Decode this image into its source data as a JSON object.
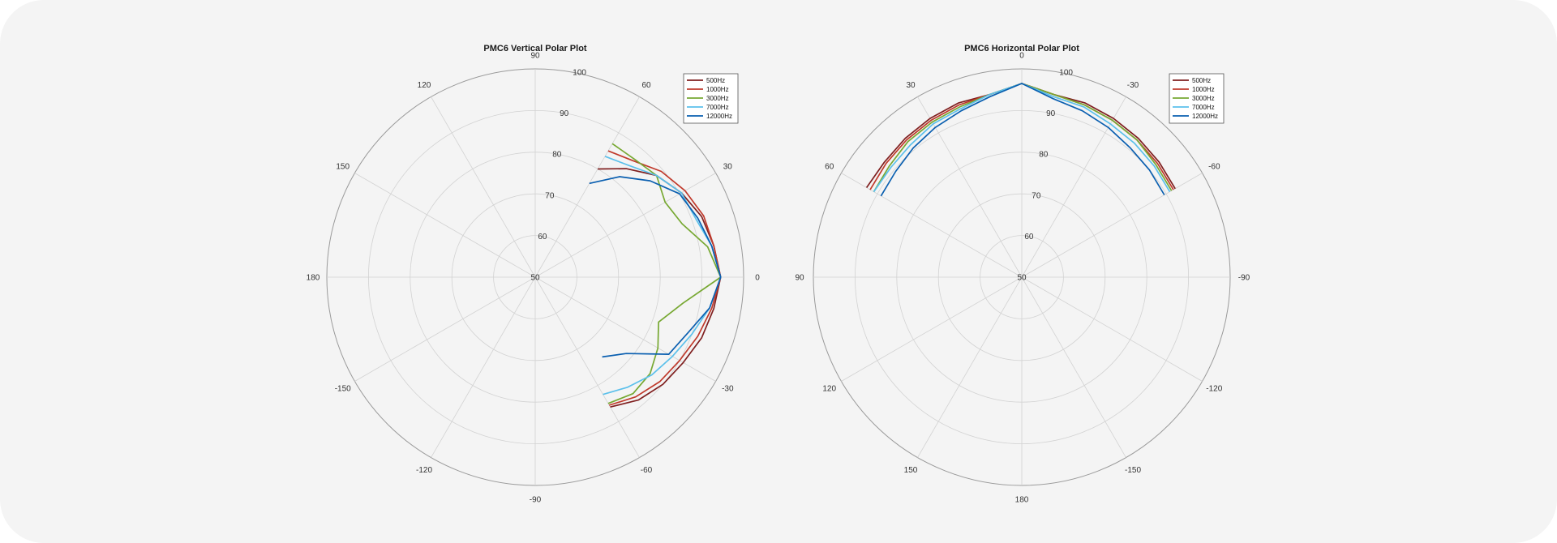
{
  "chart_data": [
    {
      "type": "line",
      "subtype": "polar",
      "title": "PMC6 Vertical Polar Plot",
      "theta_zero_direction": "right",
      "theta_direction": "counterclockwise",
      "theta_tick_labels": [
        "0",
        "30",
        "60",
        "90",
        "120",
        "150",
        "180",
        "-150",
        "-120",
        "-90",
        "-60",
        "-30"
      ],
      "r_range": [
        50,
        100
      ],
      "r_tick_labels": [
        "50",
        "60",
        "70",
        "80",
        "90",
        "100"
      ],
      "grid": true,
      "legend_position": "top-right",
      "angles": [
        -60,
        -50,
        -40,
        -30,
        -20,
        -10,
        0,
        10,
        20,
        30,
        40,
        50,
        60
      ],
      "series": [
        {
          "name": "500Hz",
          "color": "#7f1f1f",
          "values": [
            86.0,
            88.5,
            90.0,
            91.0,
            92.5,
            93.5,
            94.5,
            93.5,
            92.5,
            90.5,
            88.0,
            84.0,
            80.0
          ]
        },
        {
          "name": "1000Hz",
          "color": "#c0392b",
          "values": [
            85.5,
            87.5,
            89.0,
            90.0,
            91.5,
            93.0,
            94.5,
            93.5,
            93.0,
            91.5,
            89.5,
            86.5,
            85.0
          ]
        },
        {
          "name": "3000Hz",
          "color": "#77a832",
          "values": [
            85.0,
            86.5,
            86.0,
            84.0,
            81.5,
            86.0,
            94.5,
            92.0,
            87.5,
            86.0,
            88.0,
            87.0,
            87.0
          ]
        },
        {
          "name": "7000Hz",
          "color": "#5bc0eb",
          "values": [
            82.5,
            84.5,
            86.5,
            88.0,
            90.0,
            92.5,
            94.5,
            93.0,
            91.0,
            90.5,
            88.0,
            85.0,
            83.5
          ]
        },
        {
          "name": "12000Hz",
          "color": "#0a5fb0",
          "values": [
            null,
            75.0,
            78.5,
            87.0,
            89.0,
            92.5,
            94.5,
            93.0,
            91.5,
            90.0,
            86.0,
            81.5,
            76.0
          ]
        }
      ]
    },
    {
      "type": "line",
      "subtype": "polar",
      "title": "PMC6 Horizontal Polar Plot",
      "theta_zero_direction": "top",
      "theta_direction": "counterclockwise",
      "theta_tick_labels": [
        "0",
        "30",
        "60",
        "90",
        "120",
        "150",
        "180",
        "-150",
        "-120",
        "-90",
        "-60",
        "-30"
      ],
      "r_range": [
        50,
        100
      ],
      "r_tick_labels": [
        "50",
        "60",
        "70",
        "80",
        "90",
        "100"
      ],
      "grid": true,
      "legend_position": "top-right",
      "angles": [
        -60,
        -50,
        -40,
        -30,
        -20,
        -10,
        0,
        10,
        20,
        30,
        40,
        50,
        60
      ],
      "series": [
        {
          "name": "500Hz",
          "color": "#7f1f1f",
          "values": [
            92.5,
            93.0,
            93.5,
            94.0,
            94.5,
            94.5,
            96.5,
            94.5,
            94.5,
            94.0,
            93.5,
            93.0,
            93.0
          ]
        },
        {
          "name": "1000Hz",
          "color": "#c0392b",
          "values": [
            92.0,
            92.5,
            93.0,
            93.5,
            94.0,
            94.5,
            96.5,
            94.5,
            94.0,
            93.5,
            93.0,
            92.5,
            92.0
          ]
        },
        {
          "name": "3000Hz",
          "color": "#77a832",
          "values": [
            91.5,
            92.0,
            93.0,
            93.5,
            94.0,
            94.5,
            96.5,
            94.5,
            93.5,
            93.0,
            92.5,
            91.5,
            91.0
          ]
        },
        {
          "name": "7000Hz",
          "color": "#5bc0eb",
          "values": [
            91.0,
            91.5,
            92.0,
            92.5,
            93.5,
            94.0,
            96.5,
            94.5,
            93.0,
            92.5,
            91.5,
            91.0,
            91.0
          ]
        },
        {
          "name": "12000Hz",
          "color": "#0a5fb0",
          "values": [
            89.5,
            90.0,
            90.5,
            91.5,
            92.5,
            93.5,
            96.5,
            94.0,
            92.5,
            91.5,
            90.5,
            89.5,
            89.0
          ]
        }
      ]
    }
  ]
}
